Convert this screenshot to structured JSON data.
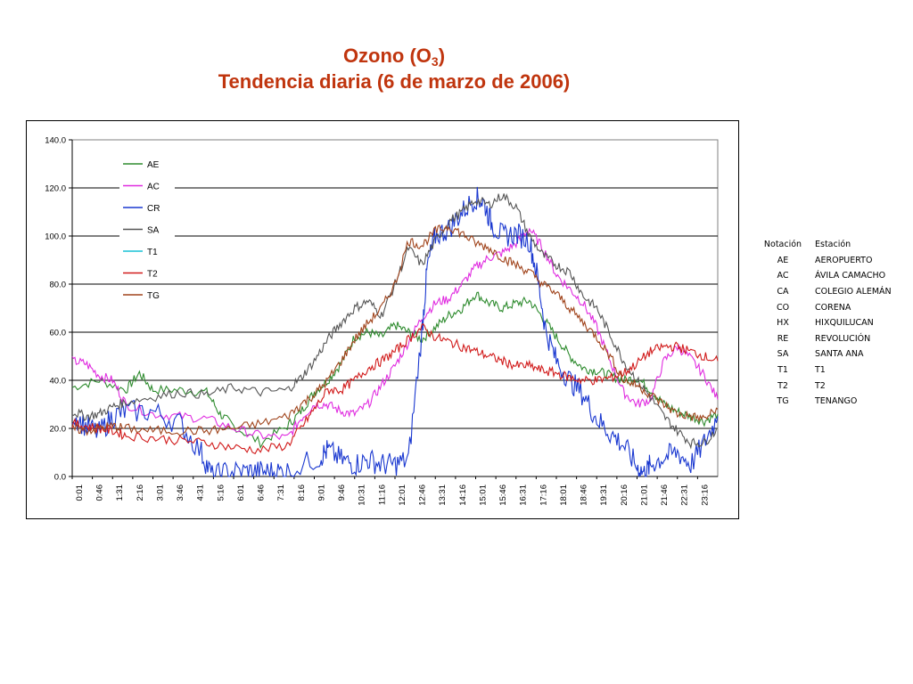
{
  "title": {
    "main": "Ozono (O",
    "sub": "3",
    "close": ")",
    "line2": "Tendencia diaria (6 de marzo de 2006)"
  },
  "legend_table": {
    "headers": [
      "Notación",
      "Estación"
    ],
    "rows": [
      [
        "AE",
        "AEROPUERTO"
      ],
      [
        "AC",
        "ÁVILA CAMACHO"
      ],
      [
        "CA",
        "COLEGIO ALEMÁN"
      ],
      [
        "CO",
        "CORENA"
      ],
      [
        "HX",
        "HIXQUILUCAN"
      ],
      [
        "RE",
        "REVOLUCIÓN"
      ],
      [
        "SA",
        "SANTA ANA"
      ],
      [
        "T1",
        "T1"
      ],
      [
        "T2",
        "T2"
      ],
      [
        "TG",
        "TENANGO"
      ]
    ]
  },
  "chart_data": {
    "type": "line",
    "title": "",
    "xlabel": "",
    "ylabel": "",
    "ylim": [
      0,
      140
    ],
    "yticks": [
      "0.0",
      "20.0",
      "40.0",
      "60.0",
      "80.0",
      "100.0",
      "120.0",
      "140.0"
    ],
    "xticks": [
      "0:01",
      "0:46",
      "1:31",
      "2:16",
      "3:01",
      "3:46",
      "4:31",
      "5:16",
      "6:01",
      "6:46",
      "7:31",
      "8:16",
      "9:01",
      "9:46",
      "10:31",
      "11:16",
      "12:01",
      "12:46",
      "13:31",
      "14:16",
      "15:01",
      "15:46",
      "16:31",
      "17:16",
      "18:01",
      "18:46",
      "19:31",
      "20:16",
      "21:01",
      "21:46",
      "22:31",
      "23:16"
    ],
    "grid": "horizontal",
    "legend_position": "top-left",
    "x_unit": "hour of day",
    "series": [
      {
        "name": "AE",
        "color": "#2e8b2e",
        "x": [
          0,
          1,
          2,
          2.5,
          3,
          4,
          5,
          5.5,
          6,
          7,
          8,
          8.5,
          9,
          9.5,
          10,
          10.5,
          11,
          11.5,
          12,
          12.5,
          13,
          13.5,
          14,
          14.5,
          15,
          15.5,
          16,
          16.5,
          17,
          17.5,
          18,
          18.5,
          19,
          19.5,
          20,
          20.5,
          21,
          21.5,
          22,
          22.5,
          23,
          23.5,
          24
        ],
        "y": [
          37,
          40,
          36,
          43,
          36,
          36,
          35,
          26,
          21,
          14,
          21,
          27,
          35,
          40,
          47,
          58,
          60,
          58,
          63,
          60,
          57,
          62,
          67,
          70,
          76,
          72,
          70,
          72,
          73,
          66,
          58,
          50,
          45,
          44,
          42,
          40,
          41,
          36,
          30,
          27,
          25,
          23,
          26
        ]
      },
      {
        "name": "AC",
        "color": "#e02ce0",
        "x": [
          0,
          0.5,
          1,
          1.5,
          2,
          3,
          4,
          5,
          6,
          7,
          8,
          8.5,
          9,
          9.5,
          10,
          10.5,
          11,
          11.5,
          12,
          12.5,
          13,
          13.5,
          14,
          14.5,
          15,
          15.5,
          16,
          16.5,
          17,
          17.5,
          18,
          18.5,
          19,
          19.5,
          20,
          20.5,
          21,
          21.5,
          22,
          22.5,
          23,
          23.5,
          24
        ],
        "y": [
          48,
          47,
          42,
          40,
          30,
          26,
          25,
          24,
          20,
          17,
          16,
          24,
          30,
          30,
          27,
          26,
          30,
          38,
          46,
          56,
          66,
          72,
          74,
          80,
          87,
          91,
          93,
          97,
          103,
          95,
          84,
          78,
          72,
          62,
          48,
          35,
          30,
          32,
          48,
          54,
          49,
          42,
          32
        ]
      },
      {
        "name": "CR",
        "color": "#1a38d0",
        "x": [
          0,
          0.5,
          1,
          1.5,
          2,
          3,
          4,
          4.8,
          5.2,
          5.8,
          6.5,
          7,
          7.5,
          8,
          9.2,
          9.5,
          10,
          10.5,
          11,
          11.5,
          12,
          12.5,
          13,
          13.2,
          13.5,
          14,
          14.5,
          15,
          15.3,
          15.6,
          16,
          16.5,
          17,
          17.3,
          17.6,
          18,
          18.5,
          19,
          19.5,
          20,
          20.5,
          21,
          21.3,
          21.5,
          22,
          22.5,
          23,
          23.5,
          24
        ],
        "y": [
          26,
          21,
          18,
          25,
          27,
          27,
          22,
          10,
          0,
          2,
          2,
          2,
          2,
          2,
          8,
          11,
          7,
          5,
          7,
          5,
          5,
          7,
          60,
          87,
          100,
          103,
          110,
          116,
          114,
          105,
          100,
          101,
          98,
          83,
          61,
          48,
          40,
          34,
          24,
          18,
          13,
          4,
          1,
          5,
          8,
          10,
          5,
          14,
          25
        ]
      },
      {
        "name": "SA",
        "color": "#555555",
        "x": [
          0,
          0.5,
          1,
          1.5,
          2,
          3,
          4,
          5,
          6,
          7,
          8,
          8.5,
          9,
          9.5,
          10,
          10.5,
          11,
          11.5,
          12,
          12.5,
          13,
          13.5,
          14,
          14.5,
          15,
          15.5,
          16,
          16.5,
          17,
          17.5,
          18,
          18.5,
          19,
          19.5,
          20,
          20.5,
          21,
          21.5,
          22,
          22.5,
          23,
          23.5,
          24
        ],
        "y": [
          27,
          25,
          26,
          29,
          31,
          33,
          35,
          34,
          37,
          35,
          36,
          41,
          48,
          57,
          64,
          70,
          73,
          67,
          80,
          95,
          88,
          98,
          106,
          110,
          115,
          113,
          117,
          112,
          100,
          92,
          88,
          85,
          75,
          70,
          59,
          48,
          40,
          33,
          25,
          19,
          14,
          14,
          20
        ]
      },
      {
        "name": "T1",
        "color": "#19c2d6",
        "x": [],
        "y": []
      },
      {
        "name": "T2",
        "color": "#d11a1a",
        "x": [
          0,
          0.5,
          1,
          1.5,
          2,
          3,
          4,
          5,
          6,
          7,
          8,
          8.5,
          9,
          9.5,
          10,
          10.5,
          11,
          11.5,
          12,
          12.5,
          13,
          13.5,
          14,
          14.5,
          15,
          15.5,
          16,
          16.5,
          17,
          17.5,
          18,
          18.5,
          19,
          19.5,
          20,
          20.5,
          21,
          21.5,
          22,
          22.5,
          23,
          23.5,
          24
        ],
        "y": [
          22,
          21,
          20,
          19,
          17,
          16,
          15,
          14,
          12,
          11,
          13,
          20,
          28,
          36,
          36,
          40,
          45,
          48,
          52,
          57,
          62,
          58,
          56,
          54,
          52,
          50,
          48,
          46,
          46,
          44,
          43,
          41,
          40,
          40,
          41,
          43,
          47,
          52,
          54,
          54,
          52,
          50,
          48
        ]
      },
      {
        "name": "TG",
        "color": "#a0441c",
        "x": [
          0,
          0.5,
          1,
          1.5,
          2,
          3,
          4,
          5,
          6,
          7,
          8,
          8.5,
          9,
          9.5,
          10,
          10.5,
          11,
          11.5,
          12,
          12.5,
          13,
          13.5,
          14,
          14.5,
          15,
          15.5,
          16,
          16.5,
          17,
          17.5,
          18,
          18.5,
          19,
          19.5,
          20,
          20.5,
          21,
          21.5,
          22,
          22.5,
          23,
          23.5,
          24
        ],
        "y": [
          20,
          19,
          20,
          21,
          20,
          19,
          19,
          19,
          20,
          22,
          25,
          30,
          34,
          40,
          48,
          57,
          64,
          70,
          80,
          98,
          96,
          102,
          104,
          101,
          97,
          95,
          91,
          88,
          85,
          80,
          76,
          70,
          64,
          58,
          50,
          40,
          38,
          34,
          30,
          26,
          25,
          24,
          28
        ]
      }
    ]
  }
}
